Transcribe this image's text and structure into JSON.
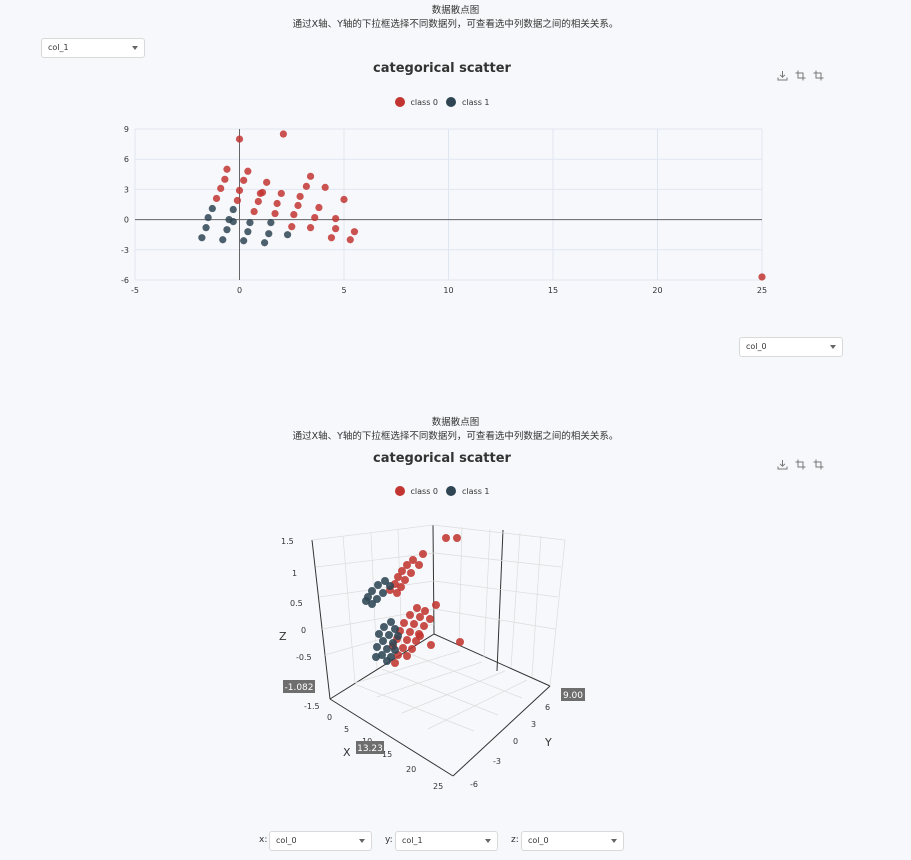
{
  "header": {
    "title": "数据散点图",
    "subtitle": "通过X轴、Y轴的下拉框选择不同数据列，可查看选中列数据之间的相关关系。"
  },
  "controls": {
    "y_select": "col_1",
    "x_select": "col_0",
    "x3d_label": "x:",
    "x3d_value": "col_0",
    "y3d_label": "y:",
    "y3d_value": "col_1",
    "z3d_label": "z:",
    "z3d_value": "col_0"
  },
  "toolbox_icons": [
    "download-icon",
    "crop-icon",
    "crop-icon"
  ],
  "colors": {
    "class0": "#c23531",
    "class1": "#2f4554"
  },
  "chart_data": [
    {
      "type": "scatter",
      "title": "categorical  scatter",
      "legend": [
        "class 0",
        "class 1"
      ],
      "legend_position": "top-center",
      "xlim": [
        -5,
        25
      ],
      "ylim": [
        -6,
        9
      ],
      "xticks": [
        -5,
        0,
        5,
        10,
        15,
        20,
        25
      ],
      "yticks": [
        -6,
        -3,
        0,
        3,
        6,
        9
      ],
      "grid": true,
      "series": [
        {
          "name": "class 0",
          "points": [
            [
              0,
              8
            ],
            [
              2.1,
              8.5
            ],
            [
              -0.6,
              5
            ],
            [
              0.4,
              4.8
            ],
            [
              -0.7,
              4
            ],
            [
              0.2,
              3.9
            ],
            [
              1.3,
              3.7
            ],
            [
              -0.9,
              3.1
            ],
            [
              0,
              2.9
            ],
            [
              1.1,
              2.7
            ],
            [
              1.0,
              2.6
            ],
            [
              2.0,
              2.6
            ],
            [
              -1.1,
              2.1
            ],
            [
              -0.1,
              1.9
            ],
            [
              0.9,
              1.8
            ],
            [
              1.8,
              1.6
            ],
            [
              3.4,
              4.3
            ],
            [
              3.2,
              3.3
            ],
            [
              4.1,
              3.2
            ],
            [
              2.9,
              2.3
            ],
            [
              2.8,
              1.4
            ],
            [
              3.8,
              1.2
            ],
            [
              2.6,
              0.5
            ],
            [
              5.0,
              2.0
            ],
            [
              1.7,
              0.6
            ],
            [
              0.7,
              0.8
            ],
            [
              3.6,
              0.2
            ],
            [
              4.6,
              0.1
            ],
            [
              2.5,
              -0.7
            ],
            [
              3.4,
              -0.8
            ],
            [
              4.6,
              -0.9
            ],
            [
              5.5,
              -1.2
            ],
            [
              4.4,
              -1.8
            ],
            [
              5.3,
              -2.0
            ],
            [
              25,
              -5.7
            ]
          ]
        },
        {
          "name": "class 1",
          "points": [
            [
              -1.3,
              1.1
            ],
            [
              -0.3,
              1
            ],
            [
              -1.5,
              0.2
            ],
            [
              -0.5,
              0
            ],
            [
              -0.3,
              -0.2
            ],
            [
              0.5,
              -0.3
            ],
            [
              1.5,
              -0.3
            ],
            [
              -1.6,
              -0.8
            ],
            [
              -0.6,
              -1
            ],
            [
              0.4,
              -1.2
            ],
            [
              1.4,
              -1.4
            ],
            [
              2.3,
              -1.5
            ],
            [
              -1.8,
              -1.8
            ],
            [
              -0.8,
              -2
            ],
            [
              0.2,
              -2.1
            ],
            [
              1.2,
              -2.3
            ]
          ]
        }
      ]
    },
    {
      "type": "scatter3d",
      "title": "categorical  scatter",
      "legend": [
        "class 0",
        "class 1"
      ],
      "xlabel": "X",
      "ylabel": "Y",
      "zlabel": "Z",
      "xticks": [
        0,
        5,
        10,
        15,
        20,
        25
      ],
      "yticks": [
        -6,
        -3,
        0,
        3,
        6
      ],
      "zticks": [
        -1.5,
        -0.5,
        0,
        0.5,
        1,
        1.5
      ],
      "pointer": {
        "x": "13.23",
        "y": "9.00",
        "z": "-1.082"
      }
    }
  ]
}
